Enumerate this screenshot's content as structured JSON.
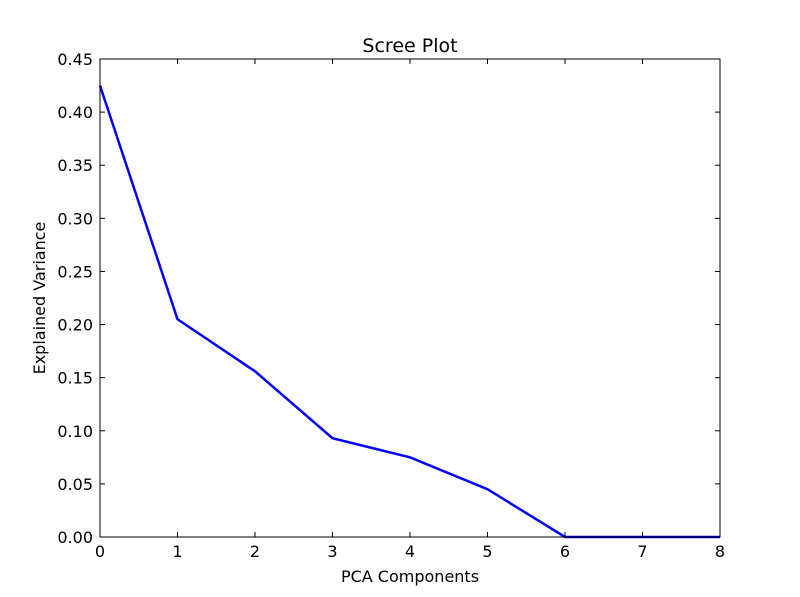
{
  "chart_data": {
    "type": "line",
    "title": "Scree Plot",
    "xlabel": "PCA Components",
    "ylabel": "Explained Variance",
    "xlim": [
      0,
      8
    ],
    "ylim": [
      0,
      0.45
    ],
    "x_ticks": [
      "0",
      "1",
      "2",
      "3",
      "4",
      "5",
      "6",
      "7",
      "8"
    ],
    "y_ticks": [
      "0.00",
      "0.05",
      "0.10",
      "0.15",
      "0.20",
      "0.25",
      "0.30",
      "0.35",
      "0.40",
      "0.45"
    ],
    "grid": false,
    "legend": "none",
    "series": [
      {
        "color": "#0000ff",
        "x": [
          0,
          1,
          2,
          3,
          4,
          5,
          6,
          7,
          8
        ],
        "y": [
          0.425,
          0.205,
          0.156,
          0.093,
          0.075,
          0.045,
          0.0,
          0.0,
          0.0
        ]
      }
    ]
  }
}
